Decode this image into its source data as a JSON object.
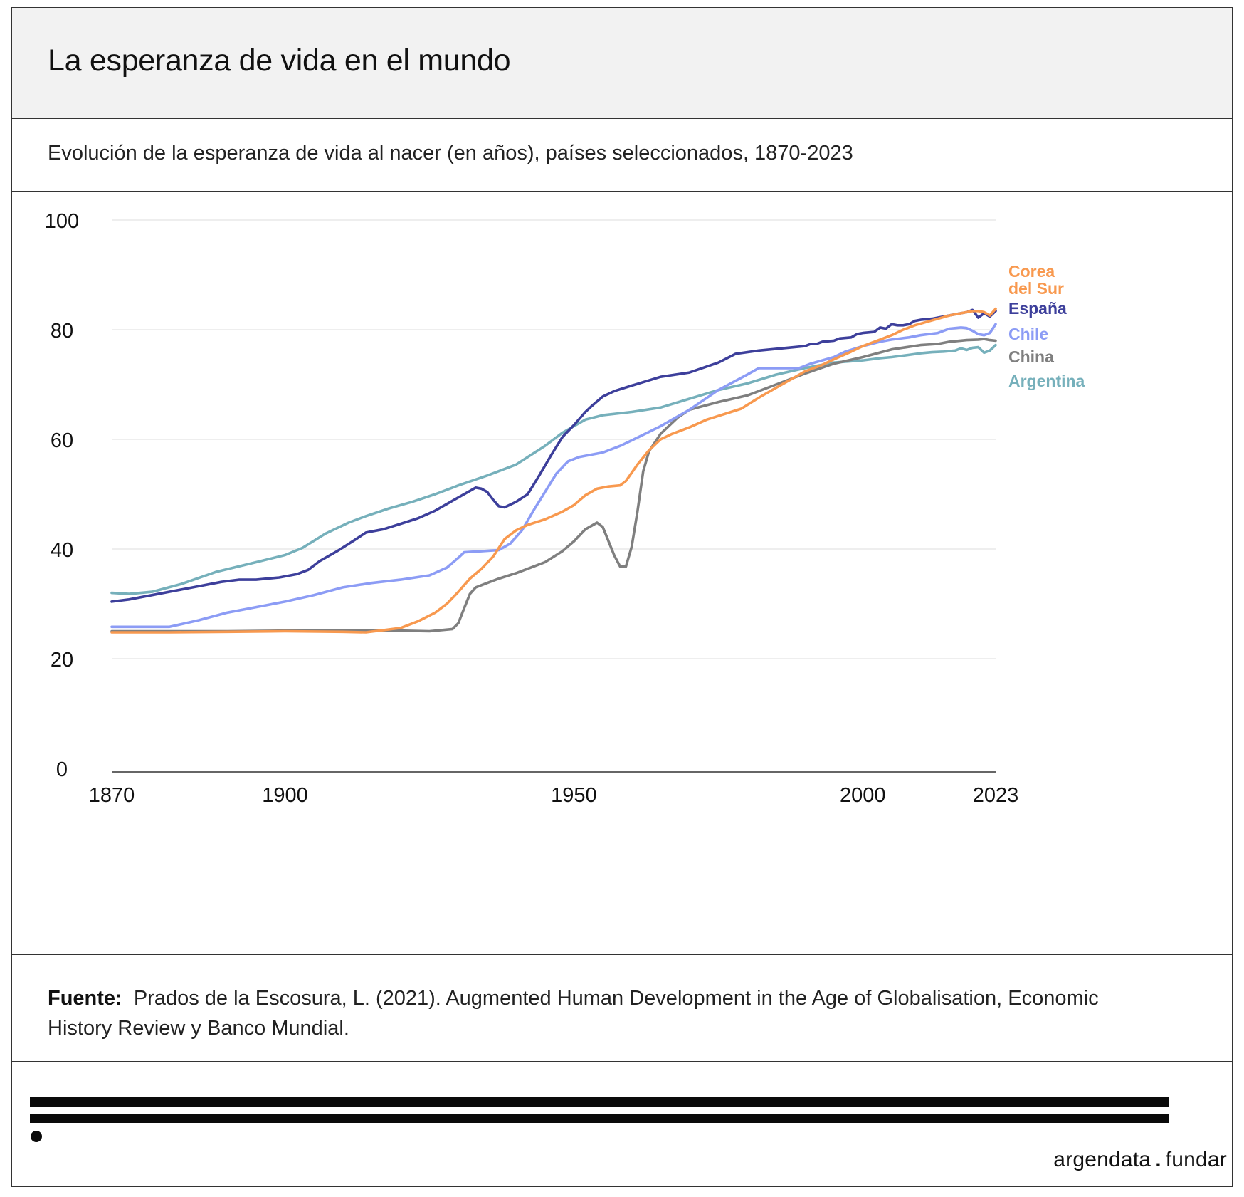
{
  "title": "La esperanza de vida en el mundo",
  "subtitle": "Evolución de la esperanza de vida al nacer (en años), países seleccionados, 1870-2023",
  "source": {
    "label": "Fuente:",
    "text": "Prados de la Escosura, L. (2021). Augmented Human Development in the Age of Globalisation, Economic History Review y Banco Mundial."
  },
  "brand": {
    "left": "argendata",
    "separator": ".",
    "right": "fundar"
  },
  "chart_data": {
    "type": "line",
    "title": "",
    "xlabel": "",
    "ylabel": "",
    "xlim": [
      1870,
      2023
    ],
    "ylim": [
      0,
      100
    ],
    "x_ticks": [
      "1870",
      "1900",
      "1950",
      "2000",
      "2023"
    ],
    "x_tick_values": [
      1870,
      1900,
      1950,
      2000,
      2023
    ],
    "y_ticks": [
      "0",
      "20",
      "40",
      "60",
      "80",
      "100"
    ],
    "y_tick_values": [
      0,
      20,
      40,
      60,
      80,
      100
    ],
    "grid": "horizontal",
    "legend": "direct labels at right end",
    "series": [
      {
        "name": "Argentina",
        "color": "#76b0bb",
        "points": [
          [
            1870,
            32.0
          ],
          [
            1873,
            31.8
          ],
          [
            1877,
            32.2
          ],
          [
            1882,
            33.6
          ],
          [
            1888,
            35.8
          ],
          [
            1895,
            37.6
          ],
          [
            1900,
            38.9
          ],
          [
            1903,
            40.2
          ],
          [
            1907,
            42.8
          ],
          [
            1911,
            44.8
          ],
          [
            1914,
            46.0
          ],
          [
            1918,
            47.4
          ],
          [
            1922,
            48.6
          ],
          [
            1926,
            50.0
          ],
          [
            1930,
            51.6
          ],
          [
            1935,
            53.4
          ],
          [
            1940,
            55.4
          ],
          [
            1945,
            58.8
          ],
          [
            1948,
            61.2
          ],
          [
            1950,
            62.4
          ],
          [
            1952,
            63.6
          ],
          [
            1955,
            64.4
          ],
          [
            1960,
            65.0
          ],
          [
            1965,
            65.8
          ],
          [
            1970,
            67.4
          ],
          [
            1975,
            69.0
          ],
          [
            1980,
            70.2
          ],
          [
            1985,
            71.8
          ],
          [
            1990,
            73.0
          ],
          [
            1995,
            74.0
          ],
          [
            2000,
            74.4
          ],
          [
            2003,
            74.8
          ],
          [
            2005,
            75.0
          ],
          [
            2008,
            75.4
          ],
          [
            2010,
            75.7
          ],
          [
            2012,
            75.9
          ],
          [
            2014,
            76.0
          ],
          [
            2016,
            76.2
          ],
          [
            2017,
            76.6
          ],
          [
            2018,
            76.3
          ],
          [
            2019,
            76.7
          ],
          [
            2020,
            76.8
          ],
          [
            2021,
            75.8
          ],
          [
            2022,
            76.2
          ],
          [
            2023,
            77.2
          ]
        ]
      },
      {
        "name": "China",
        "color": "#7f7f7f",
        "points": [
          [
            1870,
            25.0
          ],
          [
            1880,
            25.0
          ],
          [
            1890,
            25.0
          ],
          [
            1900,
            25.1
          ],
          [
            1910,
            25.2
          ],
          [
            1920,
            25.1
          ],
          [
            1925,
            25.0
          ],
          [
            1929,
            25.4
          ],
          [
            1930,
            26.5
          ],
          [
            1931,
            29.2
          ],
          [
            1932,
            31.8
          ],
          [
            1933,
            33.0
          ],
          [
            1935,
            33.8
          ],
          [
            1937,
            34.6
          ],
          [
            1940,
            35.6
          ],
          [
            1945,
            37.6
          ],
          [
            1948,
            39.6
          ],
          [
            1950,
            41.4
          ],
          [
            1952,
            43.6
          ],
          [
            1954,
            44.8
          ],
          [
            1955,
            44.0
          ],
          [
            1956,
            41.4
          ],
          [
            1957,
            38.8
          ],
          [
            1958,
            36.8
          ],
          [
            1959,
            36.8
          ],
          [
            1960,
            40.4
          ],
          [
            1961,
            46.8
          ],
          [
            1962,
            54.2
          ],
          [
            1963,
            57.8
          ],
          [
            1965,
            61.0
          ],
          [
            1968,
            64.0
          ],
          [
            1970,
            65.4
          ],
          [
            1975,
            66.8
          ],
          [
            1980,
            68.0
          ],
          [
            1985,
            70.0
          ],
          [
            1990,
            72.0
          ],
          [
            1995,
            73.8
          ],
          [
            2000,
            75.0
          ],
          [
            2005,
            76.4
          ],
          [
            2010,
            77.2
          ],
          [
            2013,
            77.4
          ],
          [
            2015,
            77.8
          ],
          [
            2018,
            78.1
          ],
          [
            2020,
            78.2
          ],
          [
            2021,
            78.3
          ],
          [
            2022,
            78.1
          ],
          [
            2023,
            78.0
          ]
        ]
      },
      {
        "name": "Chile",
        "color": "#8c9cf5",
        "points": [
          [
            1870,
            25.8
          ],
          [
            1880,
            25.8
          ],
          [
            1885,
            27.0
          ],
          [
            1890,
            28.4
          ],
          [
            1895,
            29.4
          ],
          [
            1900,
            30.4
          ],
          [
            1905,
            31.6
          ],
          [
            1910,
            33.0
          ],
          [
            1915,
            33.8
          ],
          [
            1920,
            34.4
          ],
          [
            1925,
            35.2
          ],
          [
            1928,
            36.6
          ],
          [
            1930,
            38.4
          ],
          [
            1931,
            39.4
          ],
          [
            1934,
            39.6
          ],
          [
            1937,
            39.8
          ],
          [
            1939,
            41.0
          ],
          [
            1941,
            43.4
          ],
          [
            1943,
            47.0
          ],
          [
            1945,
            50.4
          ],
          [
            1947,
            53.8
          ],
          [
            1949,
            56.0
          ],
          [
            1951,
            56.8
          ],
          [
            1955,
            57.6
          ],
          [
            1958,
            58.8
          ],
          [
            1960,
            59.8
          ],
          [
            1965,
            62.4
          ],
          [
            1970,
            65.4
          ],
          [
            1975,
            69.0
          ],
          [
            1980,
            71.8
          ],
          [
            1982,
            73.0
          ],
          [
            1986,
            73.0
          ],
          [
            1989,
            73.0
          ],
          [
            1991,
            73.8
          ],
          [
            1995,
            75.0
          ],
          [
            1997,
            76.0
          ],
          [
            2000,
            77.0
          ],
          [
            2003,
            77.8
          ],
          [
            2005,
            78.2
          ],
          [
            2008,
            78.6
          ],
          [
            2010,
            79.0
          ],
          [
            2013,
            79.4
          ],
          [
            2015,
            80.2
          ],
          [
            2017,
            80.4
          ],
          [
            2018,
            80.3
          ],
          [
            2019,
            79.8
          ],
          [
            2020,
            79.2
          ],
          [
            2021,
            79.0
          ],
          [
            2022,
            79.4
          ],
          [
            2023,
            81.0
          ]
        ]
      },
      {
        "name": "España",
        "color": "#3d3f9b",
        "points": [
          [
            1870,
            30.4
          ],
          [
            1873,
            30.8
          ],
          [
            1877,
            31.6
          ],
          [
            1881,
            32.4
          ],
          [
            1885,
            33.2
          ],
          [
            1889,
            34.0
          ],
          [
            1892,
            34.4
          ],
          [
            1895,
            34.4
          ],
          [
            1899,
            34.8
          ],
          [
            1902,
            35.4
          ],
          [
            1904,
            36.2
          ],
          [
            1906,
            37.8
          ],
          [
            1909,
            39.6
          ],
          [
            1912,
            41.6
          ],
          [
            1914,
            43.0
          ],
          [
            1917,
            43.6
          ],
          [
            1920,
            44.6
          ],
          [
            1923,
            45.6
          ],
          [
            1926,
            47.0
          ],
          [
            1929,
            48.8
          ],
          [
            1932,
            50.6
          ],
          [
            1933,
            51.2
          ],
          [
            1934,
            51.0
          ],
          [
            1935,
            50.4
          ],
          [
            1936,
            49.0
          ],
          [
            1937,
            47.8
          ],
          [
            1938,
            47.6
          ],
          [
            1940,
            48.6
          ],
          [
            1942,
            50.0
          ],
          [
            1944,
            53.4
          ],
          [
            1946,
            57.0
          ],
          [
            1948,
            60.4
          ],
          [
            1950,
            62.6
          ],
          [
            1952,
            65.0
          ],
          [
            1953,
            66.0
          ],
          [
            1955,
            67.8
          ],
          [
            1957,
            68.8
          ],
          [
            1960,
            69.8
          ],
          [
            1965,
            71.4
          ],
          [
            1970,
            72.2
          ],
          [
            1975,
            74.0
          ],
          [
            1978,
            75.6
          ],
          [
            1982,
            76.2
          ],
          [
            1986,
            76.6
          ],
          [
            1990,
            77.0
          ],
          [
            1991,
            77.4
          ],
          [
            1992,
            77.4
          ],
          [
            1993,
            77.8
          ],
          [
            1995,
            78.0
          ],
          [
            1996,
            78.4
          ],
          [
            1998,
            78.6
          ],
          [
            1999,
            79.2
          ],
          [
            2000,
            79.4
          ],
          [
            2002,
            79.6
          ],
          [
            2003,
            80.4
          ],
          [
            2004,
            80.2
          ],
          [
            2005,
            81.0
          ],
          [
            2006,
            80.8
          ],
          [
            2007,
            80.8
          ],
          [
            2008,
            81.0
          ],
          [
            2009,
            81.6
          ],
          [
            2010,
            81.8
          ],
          [
            2012,
            82.0
          ],
          [
            2014,
            82.4
          ],
          [
            2016,
            82.8
          ],
          [
            2018,
            83.2
          ],
          [
            2019,
            83.6
          ],
          [
            2020,
            82.2
          ],
          [
            2021,
            83.0
          ],
          [
            2022,
            82.4
          ],
          [
            2023,
            83.4
          ]
        ]
      },
      {
        "name": "Corea del Sur",
        "color": "#f8994f",
        "points": [
          [
            1870,
            24.8
          ],
          [
            1880,
            24.8
          ],
          [
            1890,
            24.9
          ],
          [
            1900,
            25.0
          ],
          [
            1910,
            24.9
          ],
          [
            1914,
            24.8
          ],
          [
            1917,
            25.2
          ],
          [
            1920,
            25.6
          ],
          [
            1923,
            26.8
          ],
          [
            1926,
            28.4
          ],
          [
            1928,
            30.0
          ],
          [
            1930,
            32.2
          ],
          [
            1932,
            34.6
          ],
          [
            1934,
            36.4
          ],
          [
            1936,
            38.6
          ],
          [
            1938,
            41.8
          ],
          [
            1940,
            43.4
          ],
          [
            1942,
            44.4
          ],
          [
            1945,
            45.4
          ],
          [
            1948,
            46.8
          ],
          [
            1950,
            48.0
          ],
          [
            1952,
            49.8
          ],
          [
            1954,
            51.0
          ],
          [
            1956,
            51.4
          ],
          [
            1958,
            51.6
          ],
          [
            1959,
            52.4
          ],
          [
            1961,
            55.4
          ],
          [
            1963,
            58.0
          ],
          [
            1965,
            60.0
          ],
          [
            1967,
            61.0
          ],
          [
            1970,
            62.2
          ],
          [
            1973,
            63.6
          ],
          [
            1976,
            64.6
          ],
          [
            1979,
            65.6
          ],
          [
            1982,
            67.6
          ],
          [
            1985,
            69.4
          ],
          [
            1988,
            71.2
          ],
          [
            1990,
            72.4
          ],
          [
            1993,
            73.6
          ],
          [
            1995,
            74.6
          ],
          [
            1998,
            76.0
          ],
          [
            2000,
            77.0
          ],
          [
            2003,
            78.2
          ],
          [
            2005,
            79.0
          ],
          [
            2007,
            80.0
          ],
          [
            2009,
            80.8
          ],
          [
            2011,
            81.4
          ],
          [
            2013,
            82.0
          ],
          [
            2015,
            82.6
          ],
          [
            2017,
            83.0
          ],
          [
            2019,
            83.4
          ],
          [
            2020,
            83.4
          ],
          [
            2021,
            83.2
          ],
          [
            2022,
            82.6
          ],
          [
            2023,
            83.8
          ]
        ]
      }
    ]
  }
}
